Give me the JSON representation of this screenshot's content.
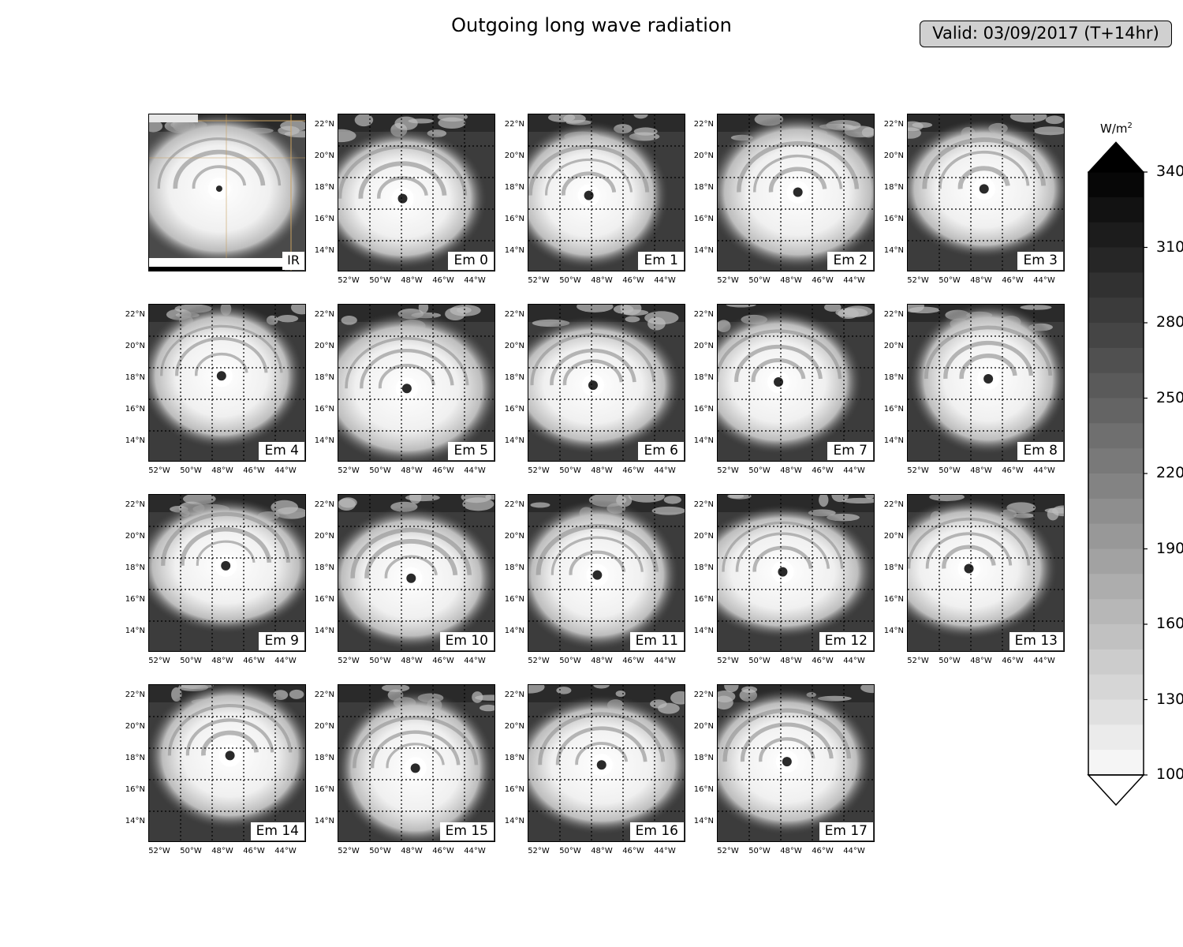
{
  "title": "Outgoing long wave radiation",
  "valid_label": "Valid: 03/09/2017 (T+14hr)",
  "ir_label": "IR",
  "lat_ticks": [
    "22°N",
    "20°N",
    "18°N",
    "16°N",
    "14°N"
  ],
  "lon_ticks": [
    "52°W",
    "50°W",
    "48°W",
    "46°W",
    "44°W"
  ],
  "members": [
    "Em 0",
    "Em 1",
    "Em 2",
    "Em 3",
    "Em 4",
    "Em 5",
    "Em 6",
    "Em 7",
    "Em 8",
    "Em 9",
    "Em 10",
    "Em 11",
    "Em 12",
    "Em 13",
    "Em 14",
    "Em 15",
    "Em 16",
    "Em 17"
  ],
  "colorbar": {
    "unit": "W/m",
    "unit_sup": "2",
    "min": 100,
    "max": 340,
    "step": 10,
    "ticks": [
      "340",
      "310",
      "280",
      "250",
      "220",
      "190",
      "160",
      "130",
      "100"
    ],
    "tick_values": [
      340,
      310,
      280,
      250,
      220,
      190,
      160,
      130,
      100
    ],
    "extend": "both",
    "colormap": "grayscale, white = low OLR, black = high OLR"
  }
}
